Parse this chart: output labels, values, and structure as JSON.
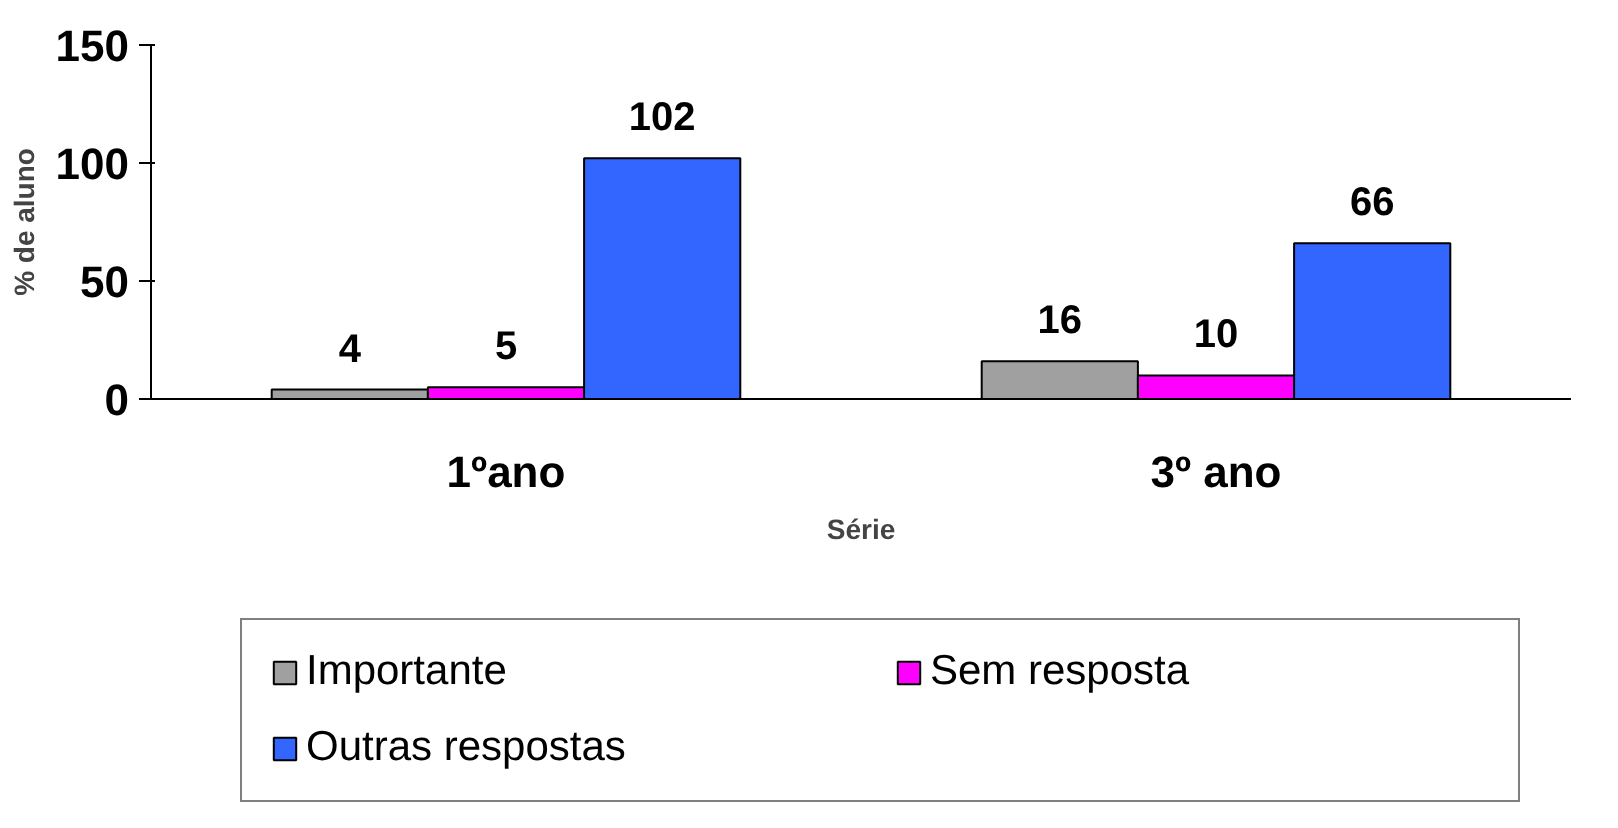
{
  "chart_data": {
    "type": "bar",
    "xlabel": "Série",
    "ylabel": "% de aluno",
    "categories": [
      "1ºano",
      "3º ano"
    ],
    "series": [
      {
        "name": "Importante",
        "color": "#a0a0a0",
        "values": [
          4,
          16
        ]
      },
      {
        "name": "Sem resposta",
        "color": "#ff00ff",
        "values": [
          5,
          10
        ]
      },
      {
        "name": "Outras respostas",
        "color": "#3366ff",
        "values": [
          102,
          66
        ]
      }
    ],
    "ylim": [
      0,
      150
    ],
    "yticks": [
      0,
      50,
      100,
      150
    ],
    "grid": false,
    "data_labels": true,
    "legend": "bottom"
  }
}
